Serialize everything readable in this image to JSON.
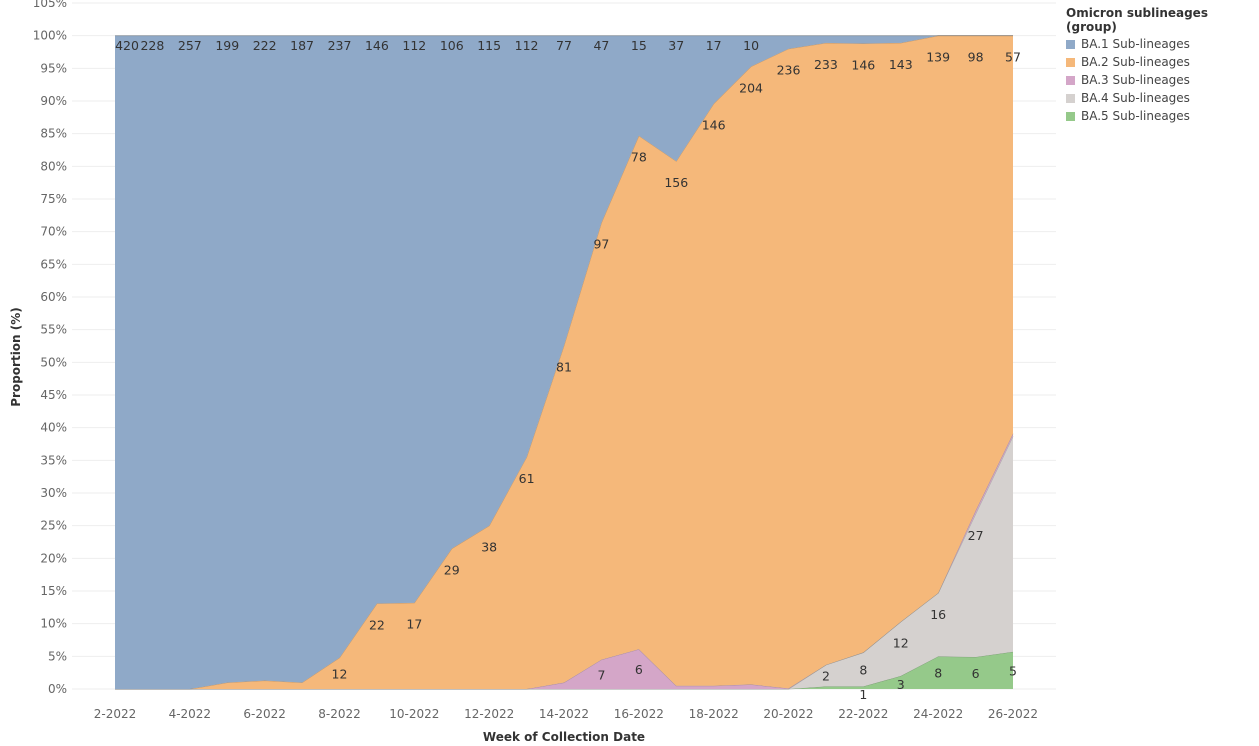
{
  "chart_data": {
    "type": "area",
    "stacked": "percent",
    "xlabel": "Week of Collection Date",
    "ylabel": "Proportion (%)",
    "ylim": [
      0,
      105
    ],
    "y_ticks": [
      "0%",
      "5%",
      "10%",
      "15%",
      "20%",
      "25%",
      "30%",
      "35%",
      "40%",
      "45%",
      "50%",
      "55%",
      "60%",
      "65%",
      "70%",
      "75%",
      "80%",
      "85%",
      "90%",
      "95%",
      "100%",
      "105%"
    ],
    "categories": [
      "2-2022",
      "3-2022",
      "4-2022",
      "5-2022",
      "6-2022",
      "7-2022",
      "8-2022",
      "9-2022",
      "10-2022",
      "11-2022",
      "12-2022",
      "13-2022",
      "14-2022",
      "15-2022",
      "16-2022",
      "17-2022",
      "18-2022",
      "19-2022",
      "20-2022",
      "21-2022",
      "22-2022",
      "23-2022",
      "24-2022",
      "25-2022",
      "26-2022"
    ],
    "x_tick_labels": [
      "2-2022",
      "",
      "4-2022",
      "",
      "6-2022",
      "",
      "8-2022",
      "",
      "10-2022",
      "",
      "12-2022",
      "",
      "14-2022",
      "",
      "16-2022",
      "",
      "18-2022",
      "",
      "20-2022",
      "",
      "22-2022",
      "",
      "24-2022",
      "",
      "26-2022"
    ],
    "legend_title": "Omicron sublineages (group)",
    "legend_position": "top-right",
    "series": [
      {
        "name": "BA.1 Sub-lineages",
        "color": "#8fa9c8",
        "values": [
          100,
          100,
          100,
          99,
          98.7,
          99,
          95.2,
          86.9,
          86.8,
          78.5,
          75,
          64.5,
          47.4,
          28.6,
          15.3,
          19.2,
          10.4,
          4.7,
          2,
          1.1,
          1.2,
          1.1,
          0,
          0,
          0
        ],
        "labels": [
          "420",
          "228",
          "257",
          "199",
          "222",
          "187",
          "237",
          "146",
          "112",
          "106",
          "115",
          "112",
          "77",
          "47",
          "15",
          "37",
          "17",
          "10",
          "",
          "",
          "",
          "",
          "",
          "",
          ""
        ]
      },
      {
        "name": "BA.2 Sub-lineages",
        "color": "#f5b87a",
        "values": [
          0,
          0,
          0,
          1,
          1.3,
          1,
          4.8,
          13.1,
          13.2,
          21.5,
          25,
          35.5,
          51.6,
          66.9,
          78.6,
          80.3,
          89.1,
          94.6,
          97.9,
          95.2,
          93.2,
          88.6,
          85.3,
          72.7,
          60.9
        ],
        "labels": [
          "",
          "",
          "",
          "",
          "",
          "",
          "12",
          "22",
          "17",
          "29",
          "38",
          "61",
          "81",
          "97",
          "78",
          "156",
          "146",
          "204",
          "236",
          "233",
          "146",
          "143",
          "139",
          "98",
          "57"
        ]
      },
      {
        "name": "BA.3 Sub-lineages",
        "color": "#d4a6c8",
        "values": [
          0,
          0,
          0,
          0,
          0,
          0,
          0,
          0,
          0,
          0,
          0,
          0,
          1,
          4.5,
          6.1,
          0.5,
          0.5,
          0.7,
          0.1,
          0,
          0,
          0,
          0,
          0.5,
          0.4
        ],
        "labels": [
          "",
          "",
          "",
          "",
          "",
          "",
          "",
          "",
          "",
          "",
          "",
          "",
          "",
          "7",
          "6",
          "",
          "",
          "",
          "",
          "",
          "",
          "",
          "",
          "",
          ""
        ]
      },
      {
        "name": "BA.4 Sub-lineages",
        "color": "#d5d1cf",
        "values": [
          0,
          0,
          0,
          0,
          0,
          0,
          0,
          0,
          0,
          0,
          0,
          0,
          0,
          0,
          0,
          0,
          0,
          0,
          0,
          3.3,
          5.2,
          8.3,
          9.7,
          21.9,
          33
        ],
        "labels": [
          "",
          "",
          "",
          "",
          "",
          "",
          "",
          "",
          "",
          "",
          "",
          "",
          "",
          "",
          "",
          "",
          "",
          "",
          "",
          "2",
          "8",
          "12",
          "16",
          "27",
          ""
        ]
      },
      {
        "name": "BA.5 Sub-lineages",
        "color": "#95c98a",
        "values": [
          0,
          0,
          0,
          0,
          0,
          0,
          0,
          0,
          0,
          0,
          0,
          0,
          0,
          0,
          0,
          0,
          0,
          0,
          0,
          0.4,
          0.4,
          2,
          5,
          4.9,
          5.7
        ],
        "labels": [
          "",
          "",
          "",
          "",
          "",
          "",
          "",
          "",
          "",
          "",
          "",
          "",
          "",
          "",
          "",
          "",
          "",
          "",
          "",
          "",
          "1",
          "3",
          "8",
          "6",
          "5"
        ]
      }
    ]
  }
}
